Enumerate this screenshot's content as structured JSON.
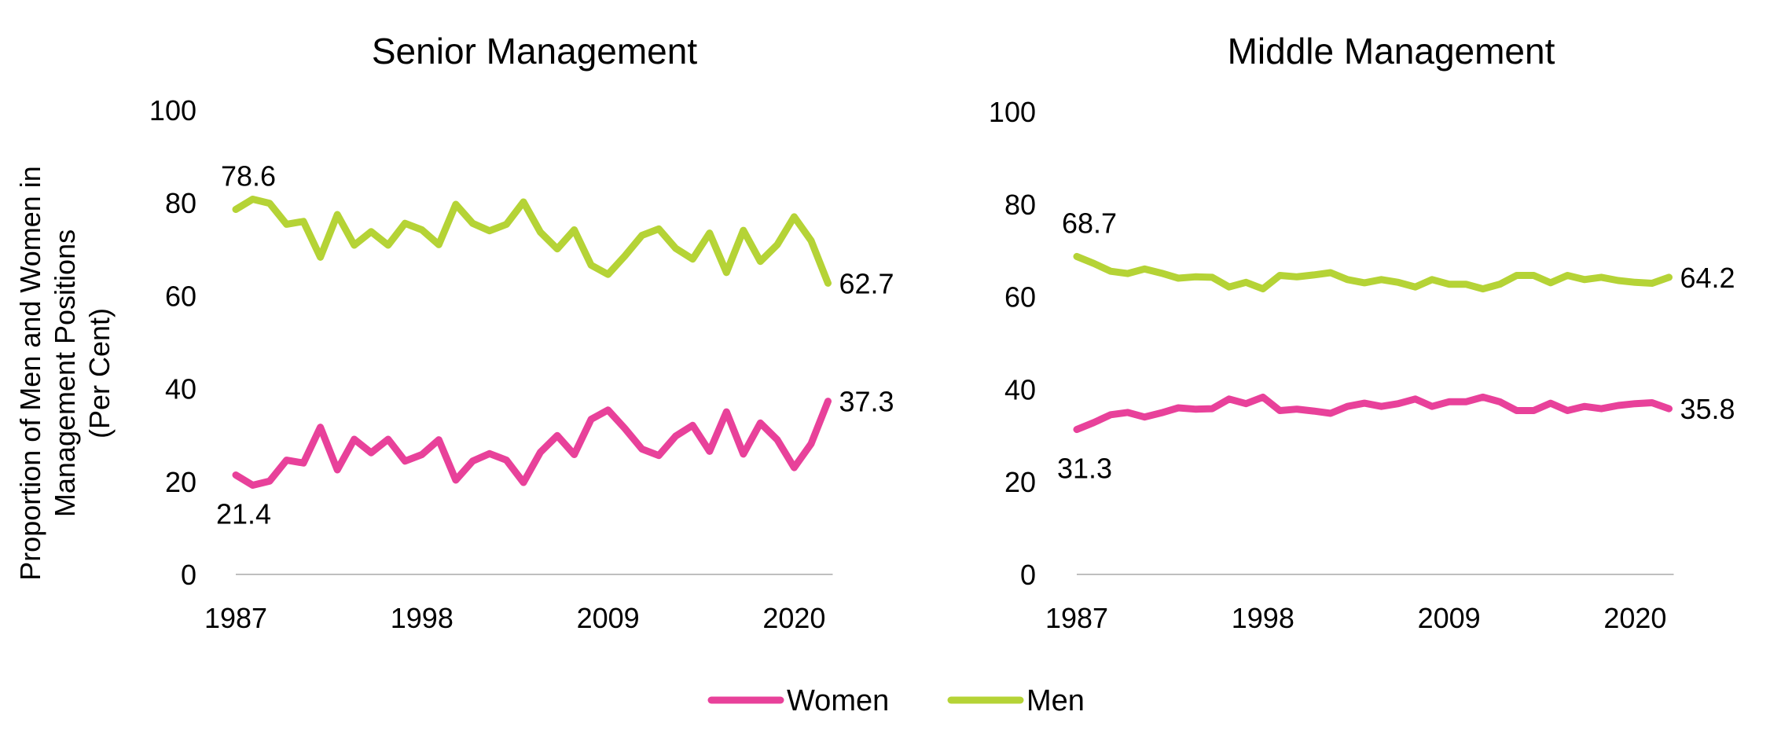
{
  "chart_data": [
    {
      "type": "line",
      "title": "Senior Management",
      "ylabel": "Proportion of Men and Women in Management Positions (Per Cent)",
      "ylabel_lines": [
        "Proportion of Men and Women in",
        "Management  Positions",
        "(Per Cent)"
      ],
      "ylim": [
        0,
        100
      ],
      "yticks": [
        0,
        20,
        40,
        60,
        80,
        100
      ],
      "xlim": [
        1987,
        2023
      ],
      "xticks": [
        1987,
        1998,
        2009,
        2020
      ],
      "grid": false,
      "x": [
        1987,
        1988,
        1989,
        1990,
        1991,
        1992,
        1993,
        1994,
        1995,
        1996,
        1997,
        1998,
        1999,
        2000,
        2001,
        2002,
        2003,
        2004,
        2005,
        2006,
        2007,
        2008,
        2009,
        2010,
        2011,
        2012,
        2013,
        2014,
        2015,
        2016,
        2017,
        2018,
        2019,
        2020,
        2021,
        2022
      ],
      "series": [
        {
          "name": "Women",
          "color": "#e8419a",
          "values": [
            21.4,
            19.2,
            20.1,
            24.6,
            24.0,
            31.7,
            22.5,
            29.1,
            26.2,
            29.1,
            24.4,
            25.8,
            29.0,
            20.3,
            24.4,
            26.0,
            24.6,
            19.8,
            26.3,
            29.9,
            25.8,
            33.4,
            35.4,
            31.4,
            27.0,
            25.6,
            29.8,
            32.1,
            26.5,
            35.0,
            25.9,
            32.6,
            29.0,
            23.0,
            28.1,
            37.3
          ],
          "labels": [
            {
              "index": 0,
              "text": "21.4",
              "pos": "below"
            },
            {
              "index": 35,
              "text": "37.3",
              "pos": "right"
            }
          ]
        },
        {
          "name": "Men",
          "color": "#b5d336",
          "values": [
            78.6,
            80.8,
            79.9,
            75.4,
            76.0,
            68.3,
            77.5,
            70.9,
            73.8,
            70.9,
            75.6,
            74.2,
            71.0,
            79.7,
            75.6,
            74.0,
            75.4,
            80.2,
            73.7,
            70.1,
            74.2,
            66.6,
            64.6,
            68.6,
            73.0,
            74.4,
            70.2,
            67.9,
            73.5,
            65.0,
            74.1,
            67.4,
            71.0,
            77.0,
            71.9,
            62.7
          ],
          "labels": [
            {
              "index": 0,
              "text": "78.6",
              "pos": "above"
            },
            {
              "index": 35,
              "text": "62.7",
              "pos": "right"
            }
          ]
        }
      ]
    },
    {
      "type": "line",
      "title": "Middle Management",
      "ylim": [
        0,
        100
      ],
      "yticks": [
        0,
        20,
        40,
        60,
        80,
        100
      ],
      "xlim": [
        1987,
        2023
      ],
      "xticks": [
        1987,
        1998,
        2009,
        2020
      ],
      "grid": false,
      "x": [
        1987,
        1988,
        1989,
        1990,
        1991,
        1992,
        1993,
        1994,
        1995,
        1996,
        1997,
        1998,
        1999,
        2000,
        2001,
        2002,
        2003,
        2004,
        2005,
        2006,
        2007,
        2008,
        2009,
        2010,
        2011,
        2012,
        2013,
        2014,
        2015,
        2016,
        2017,
        2018,
        2019,
        2020,
        2021,
        2022
      ],
      "series": [
        {
          "name": "Women",
          "color": "#e8419a",
          "values": [
            31.3,
            32.8,
            34.5,
            35.0,
            34.0,
            34.9,
            36.0,
            35.7,
            35.8,
            37.9,
            36.9,
            38.3,
            35.4,
            35.7,
            35.3,
            34.8,
            36.3,
            37.0,
            36.3,
            36.9,
            37.9,
            36.3,
            37.3,
            37.3,
            38.3,
            37.3,
            35.4,
            35.4,
            37.0,
            35.4,
            36.3,
            35.8,
            36.5,
            36.9,
            37.1,
            35.8
          ],
          "labels": [
            {
              "index": 0,
              "text": "31.3",
              "pos": "below"
            },
            {
              "index": 35,
              "text": "35.8",
              "pos": "right"
            }
          ]
        },
        {
          "name": "Men",
          "color": "#b5d336",
          "values": [
            68.7,
            67.2,
            65.5,
            65.0,
            66.0,
            65.1,
            64.0,
            64.3,
            64.2,
            62.1,
            63.1,
            61.7,
            64.6,
            64.3,
            64.7,
            65.2,
            63.7,
            63.0,
            63.7,
            63.1,
            62.1,
            63.7,
            62.7,
            62.7,
            61.7,
            62.7,
            64.6,
            64.6,
            63.0,
            64.6,
            63.7,
            64.2,
            63.5,
            63.1,
            62.9,
            64.2
          ],
          "labels": [
            {
              "index": 0,
              "text": "68.7",
              "pos": "above"
            },
            {
              "index": 35,
              "text": "64.2",
              "pos": "right"
            }
          ]
        }
      ]
    }
  ],
  "legend": {
    "placement": "bottom-center",
    "items": [
      {
        "label": "Women",
        "color": "#e8419a"
      },
      {
        "label": "Men",
        "color": "#b5d336"
      }
    ]
  }
}
